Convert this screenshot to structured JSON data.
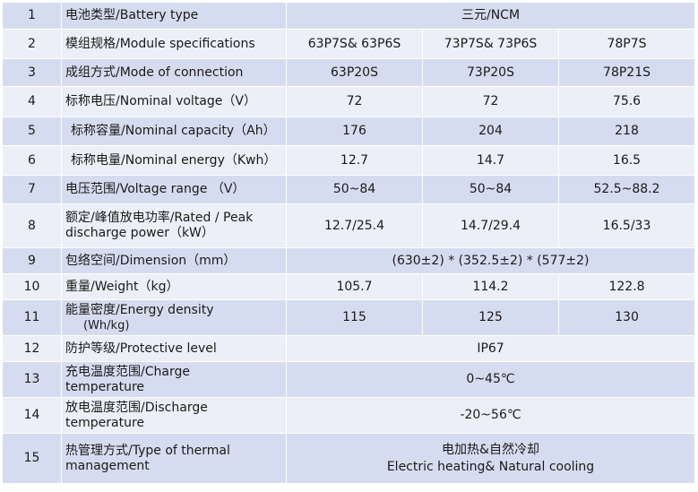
{
  "rows": [
    {
      "no": "1",
      "label": "电池类型/Battery type",
      "values": [
        "三元/NCM"
      ]
    },
    {
      "no": "2",
      "label": "模组规格/Module specifications",
      "values": [
        "63P7S& 63P6S",
        "73P7S& 73P6S",
        "78P7S"
      ]
    },
    {
      "no": "3",
      "label": "成组方式/Mode of connection",
      "values": [
        "63P20S",
        "73P20S",
        "78P21S"
      ]
    },
    {
      "no": "4",
      "label": "标称电压/Nominal voltage（V）",
      "values": [
        "72",
        "72",
        "75.6"
      ]
    },
    {
      "no": "5",
      "label": "标称容量/Nominal capacity（Ah）",
      "values": [
        "176",
        "204",
        "218"
      ]
    },
    {
      "no": "6",
      "label": "标称电量/Nominal energy（Kwh）",
      "values": [
        "12.7",
        "14.7",
        "16.5"
      ]
    },
    {
      "no": "7",
      "label": "电压范围/Voltage range （V）",
      "values": [
        "50~84",
        "50~84",
        "52.5~88.2"
      ]
    },
    {
      "no": "8",
      "label_line1": "额定/峰值放电功率/Rated / Peak",
      "label_line2": "discharge power（kW）",
      "values": [
        "12.7/25.4",
        "14.7/29.4",
        "16.5/33"
      ]
    },
    {
      "no": "9",
      "label": "包络空间/Dimension（mm）",
      "values": [
        "(630±2) * (352.5±2) * (577±2)"
      ]
    },
    {
      "no": "10",
      "label": "重量/Weight（kg）",
      "values": [
        "105.7",
        "114.2",
        "122.8"
      ]
    },
    {
      "no": "11",
      "label_line1": "能量密度/Energy density",
      "label_line2": "(Wh/kg)",
      "values": [
        "115",
        "125",
        "130"
      ]
    },
    {
      "no": "12",
      "label": "防护等级/Protective level",
      "values": [
        "IP67"
      ]
    },
    {
      "no": "13",
      "label_line1": "充电温度范围/Charge",
      "label_line2": "temperature",
      "values": [
        "0~45℃"
      ]
    },
    {
      "no": "14",
      "label_line1": "放电温度范围/Discharge",
      "label_line2": "temperature",
      "values": [
        "-20~56℃"
      ]
    },
    {
      "no": "15",
      "label_line1": "热管理方式/Type of thermal",
      "label_line2": "management",
      "values_line1": "电加热&自然冷却",
      "values_line2": "Electric heating& Natural cooling"
    }
  ]
}
